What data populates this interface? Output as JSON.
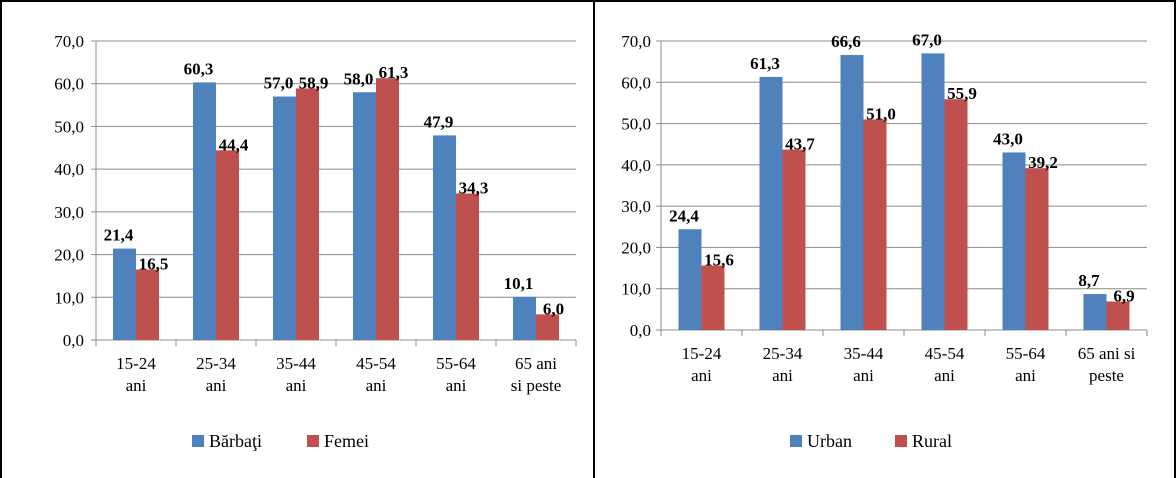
{
  "chart_data": [
    {
      "type": "bar",
      "categories": [
        [
          "15-24",
          "ani"
        ],
        [
          "25-34",
          "ani"
        ],
        [
          "35-44",
          "ani"
        ],
        [
          "45-54",
          "ani"
        ],
        [
          "55-64",
          "ani"
        ],
        [
          "65 ani",
          "si peste"
        ]
      ],
      "series": [
        {
          "name": "Bărbaţi",
          "color": "#4f81bd",
          "values": [
            21.4,
            60.3,
            57.0,
            58.0,
            47.9,
            10.1
          ],
          "labels": [
            "21,4",
            "60,3",
            "57,0",
            "58,0",
            "47,9",
            "10,1"
          ]
        },
        {
          "name": "Femei",
          "color": "#c0504d",
          "values": [
            16.5,
            44.4,
            58.9,
            61.3,
            34.3,
            6.0
          ],
          "labels": [
            "16,5",
            "44,4",
            "58,9",
            "61,3",
            "34,3",
            "6,0"
          ]
        }
      ],
      "ylim": [
        0,
        70
      ],
      "yticks": [
        "0,0",
        "10,0",
        "20,0",
        "30,0",
        "40,0",
        "50,0",
        "60,0",
        "70,0"
      ],
      "grid": true,
      "legend": "bottom"
    },
    {
      "type": "bar",
      "categories": [
        [
          "15-24",
          "ani"
        ],
        [
          "25-34",
          "ani"
        ],
        [
          "35-44",
          "ani"
        ],
        [
          "45-54",
          "ani"
        ],
        [
          "55-64",
          "ani"
        ],
        [
          "65 ani si",
          "peste"
        ]
      ],
      "series": [
        {
          "name": "Urban",
          "color": "#4f81bd",
          "values": [
            24.4,
            61.3,
            66.6,
            67.0,
            43.0,
            8.7
          ],
          "labels": [
            "24,4",
            "61,3",
            "66,6",
            "67,0",
            "43,0",
            "8,7"
          ]
        },
        {
          "name": "Rural",
          "color": "#c0504d",
          "values": [
            15.6,
            43.7,
            51.0,
            55.9,
            39.2,
            6.9
          ],
          "labels": [
            "15,6",
            "43,7",
            "51,0",
            "55,9",
            "39,2",
            "6,9"
          ]
        }
      ],
      "ylim": [
        0,
        70
      ],
      "yticks": [
        "0,0",
        "10,0",
        "20,0",
        "30,0",
        "40,0",
        "50,0",
        "60,0",
        "70,0"
      ],
      "grid": true,
      "legend": "bottom"
    }
  ]
}
